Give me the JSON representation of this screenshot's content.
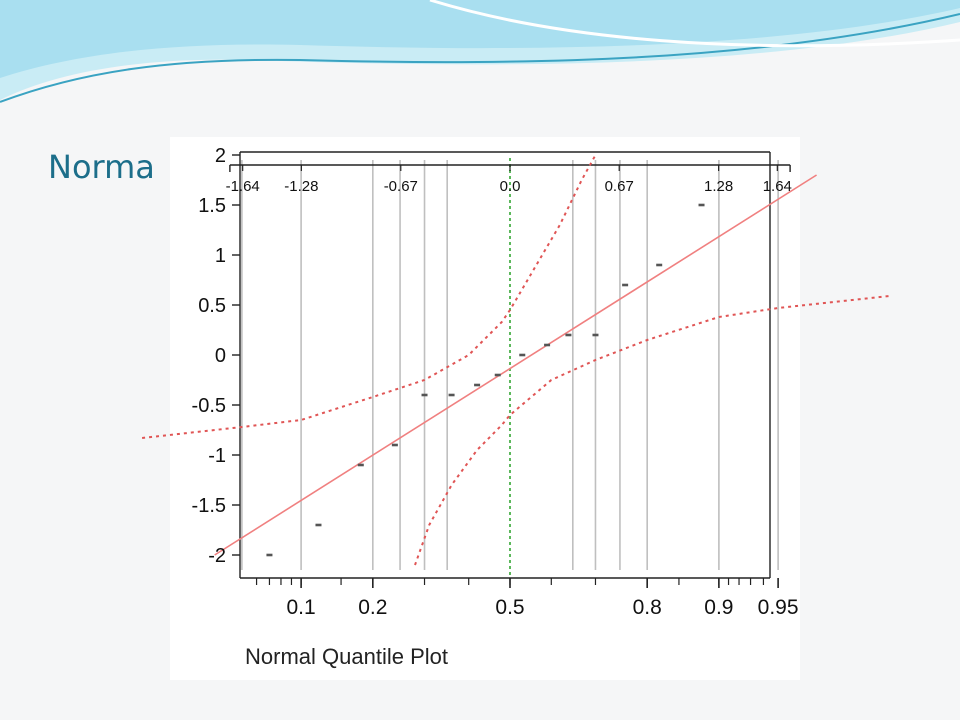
{
  "slide": {
    "title": "Norma",
    "colors": {
      "accent": "#1c6e8a",
      "wave_light": "#bfe8f3",
      "wave_dark": "#3aa3c2"
    }
  },
  "chart_data": {
    "type": "scatter",
    "title": "",
    "xlabel": "Normal Quantile Plot",
    "ylabel": "",
    "xscale": "normal-probability",
    "ylim": [
      -2,
      2
    ],
    "y_ticks": [
      "2",
      "1.5",
      "1",
      "0.5",
      "0",
      "-0.5",
      "-1",
      "-1.5",
      "-2"
    ],
    "bottom_ticks": [
      "0.1",
      "0.2",
      "0.5",
      "0.8",
      "0.9",
      "0.95"
    ],
    "top_ticks": [
      "-1.64",
      "-1.28",
      "-0.67",
      "0.0",
      "0.67",
      "1.28",
      "1.64"
    ],
    "grid": "vertical lines at labeled quantiles",
    "points": [
      {
        "x": 0.07,
        "y": -2.0
      },
      {
        "x": 0.12,
        "y": -1.7
      },
      {
        "x": 0.18,
        "y": -1.1
      },
      {
        "x": 0.24,
        "y": -0.9
      },
      {
        "x": 0.3,
        "y": -0.4
      },
      {
        "x": 0.36,
        "y": -0.4
      },
      {
        "x": 0.42,
        "y": -0.3
      },
      {
        "x": 0.47,
        "y": -0.2
      },
      {
        "x": 0.53,
        "y": 0.0
      },
      {
        "x": 0.59,
        "y": 0.1
      },
      {
        "x": 0.64,
        "y": 0.2
      },
      {
        "x": 0.7,
        "y": 0.2
      },
      {
        "x": 0.76,
        "y": 0.7
      },
      {
        "x": 0.82,
        "y": 0.9
      },
      {
        "x": 0.88,
        "y": 1.5
      }
    ],
    "fit_line": {
      "from": {
        "x": 0.035,
        "y": -2.0
      },
      "to": {
        "x": 0.97,
        "y": 1.8
      }
    },
    "confidence_upper": [
      {
        "x": 0.012,
        "y": -0.83
      },
      {
        "x": 0.05,
        "y": -0.72
      },
      {
        "x": 0.1,
        "y": -0.65
      },
      {
        "x": 0.2,
        "y": -0.42
      },
      {
        "x": 0.3,
        "y": -0.25
      },
      {
        "x": 0.4,
        "y": 0.0
      },
      {
        "x": 0.48,
        "y": 0.33
      },
      {
        "x": 0.5,
        "y": 0.45
      },
      {
        "x": 0.55,
        "y": 0.8
      },
      {
        "x": 0.62,
        "y": 1.3
      },
      {
        "x": 0.67,
        "y": 1.75
      },
      {
        "x": 0.7,
        "y": 2.0
      }
    ],
    "confidence_lower": [
      {
        "x": 0.28,
        "y": -2.1
      },
      {
        "x": 0.31,
        "y": -1.7
      },
      {
        "x": 0.36,
        "y": -1.3
      },
      {
        "x": 0.42,
        "y": -0.95
      },
      {
        "x": 0.48,
        "y": -0.7
      },
      {
        "x": 0.5,
        "y": -0.6
      },
      {
        "x": 0.6,
        "y": -0.25
      },
      {
        "x": 0.7,
        "y": -0.05
      },
      {
        "x": 0.8,
        "y": 0.15
      },
      {
        "x": 0.9,
        "y": 0.38
      },
      {
        "x": 0.95,
        "y": 0.47
      },
      {
        "x": 0.99,
        "y": 0.59
      }
    ],
    "colors": {
      "fit": "#f08080",
      "confidence": "#e05555",
      "grid": "#bfbfbf",
      "center_line": "#5cb85c",
      "points": "#555555"
    }
  }
}
